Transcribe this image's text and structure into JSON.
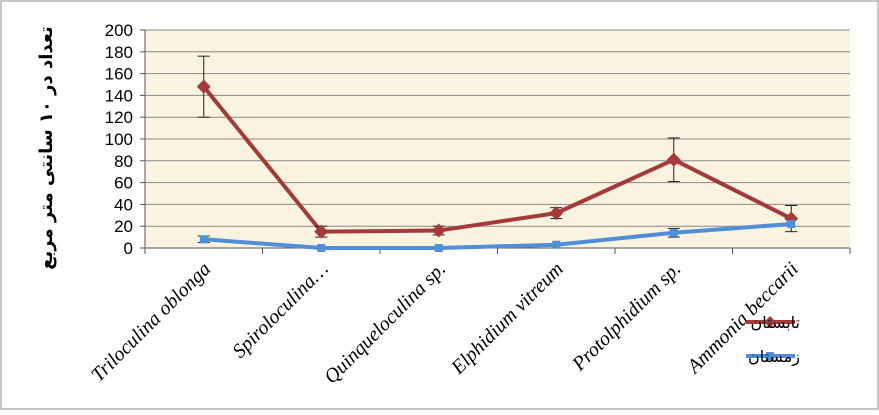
{
  "chart_data": {
    "type": "line",
    "categories": [
      "Triloculina oblonga",
      "Spiroloculina…",
      "Quinqueloculina sp.",
      "Elphidium vitreum",
      "Protolphidium sp.",
      "Ammonia beccarii"
    ],
    "series": [
      {
        "name": "تابستان",
        "color": "#A53A3A",
        "marker": "diamond",
        "values": [
          148,
          15,
          16,
          32,
          81,
          27
        ],
        "error": [
          28,
          5,
          4,
          5,
          20,
          12
        ]
      },
      {
        "name": "زمستان",
        "color": "#4F8FDA",
        "marker": "square",
        "values": [
          8,
          0,
          0,
          3,
          14,
          22
        ],
        "error": [
          3,
          0,
          0,
          0,
          4,
          0
        ]
      }
    ],
    "title": "",
    "xlabel": "",
    "ylabel": "تعداد در ۱۰ سانتی متر مربع",
    "ylim": [
      0,
      200
    ],
    "yticks": [
      0,
      20,
      40,
      60,
      80,
      100,
      120,
      140,
      160,
      180,
      200
    ],
    "grid": true,
    "legend_position": "right"
  }
}
